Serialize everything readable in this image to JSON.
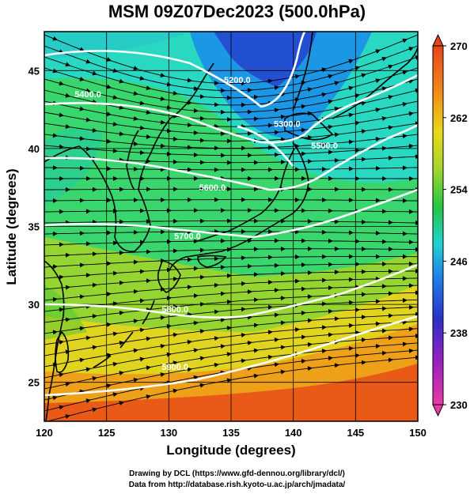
{
  "title": "MSM 09Z07Dec2023 (500.0hPa)",
  "credits": {
    "line1": "Drawing by DCL (https://www.gfd-dennou.org/library/dcl/)",
    "line2": "Data from http://database.rish.kyoto-u.ac.jp/arch/jmadata/"
  },
  "axes": {
    "xlabel": "Longitude (degrees)",
    "ylabel": "Latitude  (degrees)",
    "xlim": [
      120,
      150
    ],
    "ylim": [
      22.5,
      47.5
    ],
    "xticks": [
      "120",
      "125",
      "130",
      "135",
      "140",
      "145",
      "150"
    ],
    "yticks": [
      "25",
      "30",
      "35",
      "40",
      "45"
    ],
    "grid_every_deg": 5
  },
  "colorbar": {
    "min": 230,
    "max": 270,
    "labels": [
      "270",
      "262",
      "254",
      "246",
      "238",
      "230"
    ]
  },
  "contours": [
    {
      "label": "5200.0",
      "lon": 135.5,
      "lat": 44.2
    },
    {
      "label": "5300.0",
      "lon": 139.5,
      "lat": 41.4
    },
    {
      "label": "5400.0",
      "lon": 123.5,
      "lat": 43.3
    },
    {
      "label": "5500.0",
      "lon": 142.5,
      "lat": 40.0
    },
    {
      "label": "5600.0",
      "lon": 133.5,
      "lat": 37.3
    },
    {
      "label": "5700.0",
      "lon": 131.5,
      "lat": 34.2
    },
    {
      "label": "5800.0",
      "lon": 130.5,
      "lat": 29.5
    },
    {
      "label": "5900.0",
      "lon": 130.5,
      "lat": 25.8
    }
  ]
}
